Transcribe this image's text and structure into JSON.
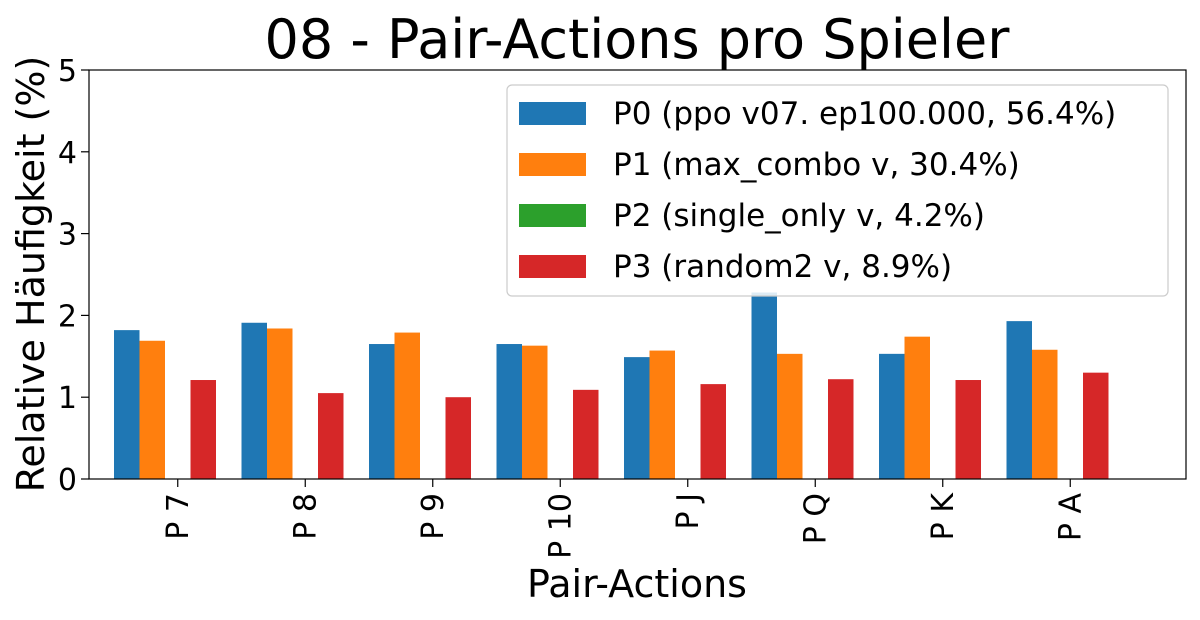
{
  "chart_data": {
    "type": "bar",
    "title": "08 - Pair-Actions pro Spieler",
    "xlabel": "Pair-Actions",
    "ylabel": "Relative Häufigkeit (%)",
    "ylim": [
      0,
      5
    ],
    "yticks": [
      0,
      1,
      2,
      3,
      4,
      5
    ],
    "categories": [
      "P 7",
      "P 8",
      "P 9",
      "P 10",
      "P J",
      "P Q",
      "P K",
      "P A"
    ],
    "legend_position": "upper-right",
    "grid": false,
    "series": [
      {
        "name": "P0 (ppo v07. ep100.000, 56.4%)",
        "color": "#1f77b4",
        "values": [
          1.82,
          1.91,
          1.65,
          1.65,
          1.49,
          2.28,
          1.53,
          1.93
        ]
      },
      {
        "name": "P1 (max_combo v, 30.4%)",
        "color": "#ff7f0e",
        "values": [
          1.69,
          1.84,
          1.79,
          1.63,
          1.57,
          1.53,
          1.74,
          1.58
        ]
      },
      {
        "name": "P2 (single_only v, 4.2%)",
        "color": "#2ca02c",
        "values": [
          0,
          0,
          0,
          0,
          0,
          0,
          0,
          0
        ]
      },
      {
        "name": "P3 (random2 v, 8.9%)",
        "color": "#d62728",
        "values": [
          1.21,
          1.05,
          1.0,
          1.09,
          1.16,
          1.22,
          1.21,
          1.3
        ]
      }
    ]
  }
}
